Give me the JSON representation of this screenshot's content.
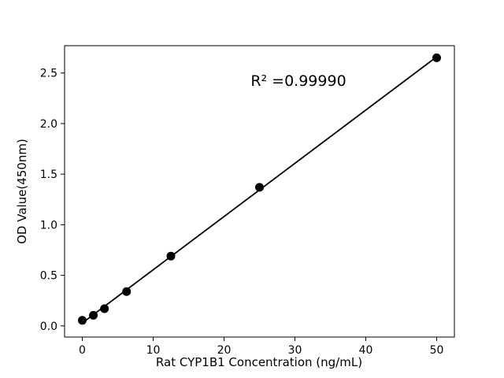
{
  "figure": {
    "background": "#ffffff",
    "foreground": "#000000"
  },
  "chart_data": {
    "type": "scatter",
    "title": "",
    "xlabel": "Rat CYP1B1 Concentration (ng/mL)",
    "ylabel": "OD Value(450nm)",
    "x": [
      0,
      1.56,
      3.125,
      6.25,
      12.5,
      25,
      50
    ],
    "y": [
      0.055,
      0.105,
      0.17,
      0.34,
      0.69,
      1.37,
      2.65
    ],
    "series": [
      {
        "name": "standard-curve",
        "marker": "circle",
        "marker_color": "#000000",
        "line_color": "#000000",
        "fit": "linear",
        "fit_x_start": 0,
        "fit_x_end": 50
      }
    ],
    "annotation": {
      "text": "R² =0.99990",
      "x": 30.5,
      "y": 2.42
    },
    "xlim": [
      -2.5,
      52.5
    ],
    "ylim": [
      -0.11,
      2.77
    ],
    "xticks": [
      0,
      10,
      20,
      30,
      40,
      50
    ],
    "xtick_labels": [
      "0",
      "10",
      "20",
      "30",
      "40",
      "50"
    ],
    "yticks": [
      0.0,
      0.5,
      1.0,
      1.5,
      2.0,
      2.5
    ],
    "ytick_labels": [
      "0.0",
      "0.5",
      "1.0",
      "1.5",
      "2.0",
      "2.5"
    ],
    "grid": false,
    "legend": "none"
  }
}
